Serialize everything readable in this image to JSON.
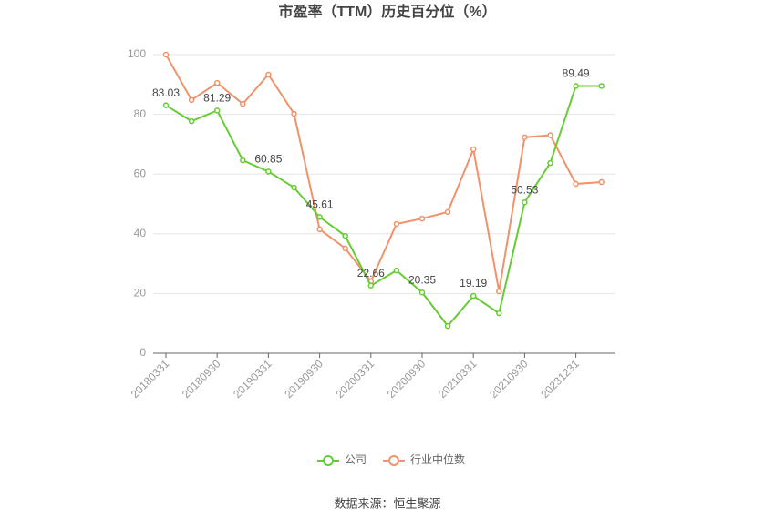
{
  "chart_data": {
    "type": "line",
    "title": "市盈率（TTM）历史百分位（%）",
    "source": "数据来源：恒生聚源",
    "categories": [
      "20180331",
      null,
      "20180930",
      null,
      "20190331",
      null,
      "20190930",
      null,
      "20200331",
      null,
      "20200930",
      null,
      "20210331",
      null,
      "20210930",
      null,
      "20231231",
      null
    ],
    "ylim": [
      0,
      100
    ],
    "yticks": [
      0,
      20,
      40,
      60,
      80,
      100
    ],
    "grid": true,
    "series": [
      {
        "name": "公司",
        "color": "#66cc33",
        "values": [
          83.03,
          77.7,
          81.29,
          64.6,
          60.85,
          55.5,
          45.61,
          39.3,
          22.66,
          27.7,
          20.35,
          9.1,
          19.19,
          13.4,
          50.53,
          63.7,
          89.49,
          89.5
        ],
        "value_labels": [
          "83.03",
          null,
          "81.29",
          null,
          "60.85",
          null,
          "45.61",
          null,
          "22.66",
          null,
          "20.35",
          null,
          "19.19",
          null,
          "50.53",
          null,
          "89.49",
          null
        ]
      },
      {
        "name": "行业中位数",
        "color": "#f0926a",
        "values": [
          100,
          84.8,
          90.5,
          83.5,
          93.3,
          80.2,
          41.5,
          35.1,
          24.1,
          43.3,
          45.1,
          47.3,
          68.3,
          20.7,
          72.3,
          73,
          56.7,
          57.3
        ]
      }
    ]
  }
}
